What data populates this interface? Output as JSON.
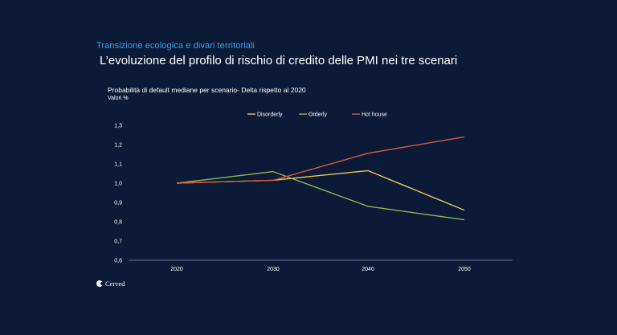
{
  "header": {
    "kicker": "Transizione ecologica e divari territoriali",
    "title": "L’evoluzione del profilo di rischio di credito delle PMI nei tre scenari"
  },
  "brand": {
    "name": "Cerved"
  },
  "chart_data": {
    "type": "line",
    "title": "Probabilità di default mediane per scenario- Delta rispetto al 2020",
    "subtitle": "Valori %",
    "xlabel": "",
    "ylabel": "",
    "categories": [
      "2020",
      "2030",
      "2040",
      "2050"
    ],
    "ylim": [
      0.6,
      1.3
    ],
    "yticks": [
      0.6,
      0.7,
      0.8,
      0.9,
      1.0,
      1.1,
      1.2,
      1.3
    ],
    "ytick_labels": [
      "0,6",
      "0,7",
      "0,8",
      "0,9",
      "1,0",
      "1,1",
      "1,2",
      "1,3"
    ],
    "grid": false,
    "legend_position": "top-center",
    "series": [
      {
        "name": "Disorderly",
        "color": "#f2c14e",
        "values": [
          1.0,
          1.015,
          1.065,
          0.86
        ]
      },
      {
        "name": "Orderly",
        "color": "#8cb84a",
        "values": [
          1.0,
          1.06,
          0.88,
          0.81
        ]
      },
      {
        "name": "Hot house",
        "color": "#d9573a",
        "values": [
          1.0,
          1.015,
          1.155,
          1.24
        ]
      }
    ]
  }
}
